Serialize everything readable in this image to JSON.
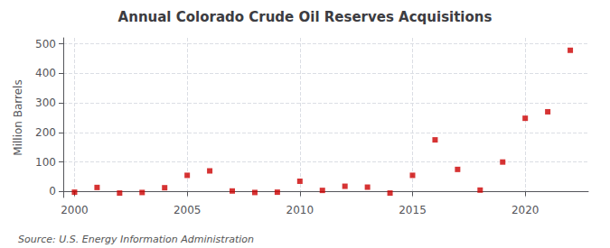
{
  "chart_data": {
    "type": "scatter",
    "title": "Annual Colorado Crude Oil Reserves Acquisitions",
    "ylabel": "Million Barrels",
    "annotations": [
      "Source: U.S. Energy Information Administration"
    ],
    "x": [
      2000,
      2001,
      2002,
      2003,
      2004,
      2005,
      2006,
      2007,
      2008,
      2009,
      2010,
      2011,
      2012,
      2013,
      2014,
      2015,
      2016,
      2017,
      2018,
      2019,
      2020,
      2021,
      2022
    ],
    "values": [
      -2,
      14,
      -5,
      -3,
      13,
      55,
      70,
      2,
      -3,
      -2,
      35,
      4,
      18,
      15,
      -5,
      55,
      175,
      75,
      5,
      100,
      248,
      270,
      478
    ],
    "color": "#cc0000",
    "marker": "square",
    "xlim": [
      1999.5,
      2022.8
    ],
    "xticks": [
      2000,
      2005,
      2010,
      2015,
      2020
    ],
    "ylim": [
      -20,
      520
    ],
    "yticks": [
      0,
      100,
      200,
      300,
      400,
      500
    ],
    "grid": true
  }
}
